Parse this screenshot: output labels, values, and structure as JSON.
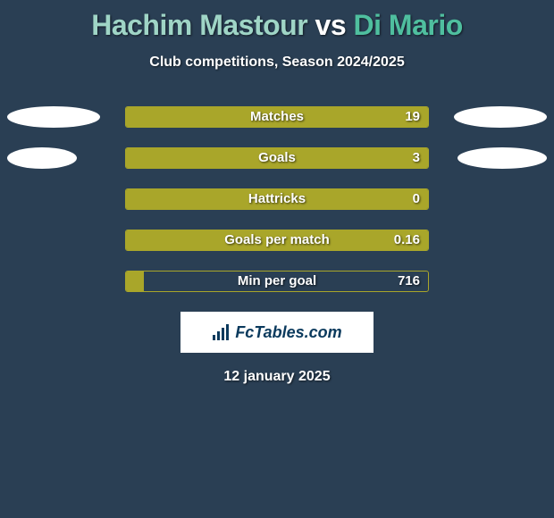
{
  "background_color": "#2a3f54",
  "title": {
    "player1": "Hachim Mastour",
    "vs": " vs ",
    "player2": "Di Mario",
    "player1_color": "#9fd5c6",
    "vs_color": "#ffffff",
    "player2_color": "#4fbf9f"
  },
  "subtitle": "Club competitions, Season 2024/2025",
  "bar_color": "#a9a62a",
  "ellipse_color": "#ffffff",
  "text_color": "#ffffff",
  "rows": [
    {
      "label": "Matches",
      "value_text": "19",
      "fill": 1.0,
      "left_ellipse_w": 104,
      "right_ellipse_w": 104
    },
    {
      "label": "Goals",
      "value_text": "3",
      "fill": 1.0,
      "left_ellipse_w": 78,
      "right_ellipse_w": 100
    },
    {
      "label": "Hattricks",
      "value_text": "0",
      "fill": 1.0,
      "left_ellipse_w": 0,
      "right_ellipse_w": 0
    },
    {
      "label": "Goals per match",
      "value_text": "0.16",
      "fill": 1.0,
      "left_ellipse_w": 0,
      "right_ellipse_w": 0
    },
    {
      "label": "Min per goal",
      "value_text": "716",
      "fill": 0.06,
      "left_ellipse_w": 0,
      "right_ellipse_w": 0
    }
  ],
  "logo_text": "FcTables.com",
  "footer_date": "12 january 2025"
}
